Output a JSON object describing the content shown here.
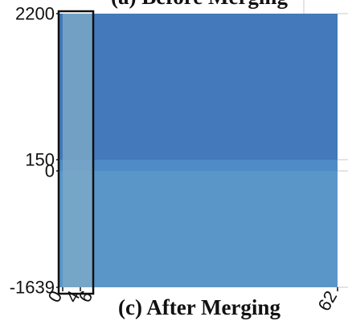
{
  "chart_data": {
    "type": "heatmap",
    "title": "(a) Before Merging",
    "subtitle": "(c) After Merging",
    "y_ticks": [
      2200,
      150,
      0,
      -1639
    ],
    "x_ticks": [
      0,
      4,
      6,
      62
    ],
    "x_tick_labels": [
      "0",
      "4",
      "6",
      "62"
    ],
    "y_tick_labels": [
      "2200",
      "150",
      "0",
      "-1639"
    ],
    "ylim": [
      -1639,
      2200
    ],
    "xlim": [
      0,
      62
    ],
    "highlight": {
      "x_range": [
        0,
        6
      ],
      "y_range": [
        -1639,
        2200
      ]
    },
    "regions": [
      {
        "y_range": [
          150,
          2200
        ],
        "color": "#4479bb"
      },
      {
        "y_range": [
          0,
          150
        ],
        "color": "#4f8bc6"
      },
      {
        "y_range": [
          -1639,
          0
        ],
        "color": "#5a97c8"
      }
    ],
    "highlight_fill": "#7aa7c7",
    "grid": true
  }
}
